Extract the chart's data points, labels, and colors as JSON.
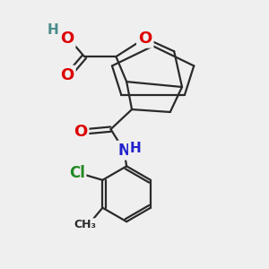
{
  "bg_color": "#efefef",
  "bond_color": "#2a2a2a",
  "bond_width": 1.6,
  "atom_colors": {
    "O": "#dd0000",
    "N": "#2222cc",
    "Cl": "#228822",
    "H": "#4a8a8a"
  },
  "font_size_atom": 12,
  "font_size_small": 10,
  "font_size_label": 11
}
